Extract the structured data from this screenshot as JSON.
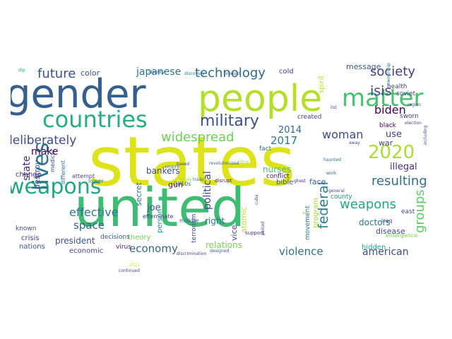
{
  "words": [
    {
      "text": "states",
      "color": "#dde318"
    },
    {
      "text": "united",
      "color": "#3fbc73"
    },
    {
      "text": "people",
      "color": "#b5de2b"
    },
    {
      "text": "gender",
      "color": "#355f8d"
    },
    {
      "text": "countries",
      "color": "#26ad81"
    },
    {
      "text": "matter",
      "color": "#48c16e"
    },
    {
      "text": "weapons",
      "color": "#22a785"
    },
    {
      "text": "lives",
      "color": "#2b758e"
    },
    {
      "text": "2020",
      "color": "#addc30"
    },
    {
      "text": "military",
      "color": "#3b528b"
    },
    {
      "text": "technology",
      "color": "#31688e"
    },
    {
      "text": "deliberately",
      "color": "#3e4989"
    },
    {
      "text": "future",
      "color": "#3b528b"
    },
    {
      "text": "japanese",
      "color": "#2c718e"
    },
    {
      "text": "society",
      "color": "#424086"
    },
    {
      "text": "isis",
      "color": "#424186"
    },
    {
      "text": "biden",
      "color": "#440154"
    },
    {
      "text": "woman",
      "color": "#3e4a89"
    },
    {
      "text": "widespread",
      "color": "#6ece58"
    },
    {
      "text": "effective",
      "color": "#2a788e"
    },
    {
      "text": "weapons",
      "color": "#22a785"
    },
    {
      "text": "federal",
      "color": "#287d8e"
    },
    {
      "text": "groups",
      "color": "#5ec962"
    },
    {
      "text": "resulting",
      "color": "#2d708e"
    },
    {
      "text": "space",
      "color": "#32658e"
    },
    {
      "text": "president",
      "color": "#3b528b"
    },
    {
      "text": "economy",
      "color": "#33638d"
    },
    {
      "text": "violence",
      "color": "#2c718e"
    },
    {
      "text": "american",
      "color": "#3e4a89"
    },
    {
      "text": "relations",
      "color": "#7ad151"
    },
    {
      "text": "political",
      "color": "#3e4989"
    },
    {
      "text": "joe",
      "color": "#38588c"
    },
    {
      "text": "2014",
      "color": "#31688e"
    },
    {
      "text": "2017",
      "color": "#2a788e"
    },
    {
      "text": "make",
      "color": "#440154"
    },
    {
      "text": "state",
      "color": "#482878"
    },
    {
      "text": "destroy",
      "color": "#3b528b"
    },
    {
      "text": "secret",
      "color": "#2c728e"
    },
    {
      "text": "right",
      "color": "#2a788e"
    },
    {
      "text": "illegal",
      "color": "#46327e"
    },
    {
      "text": "use",
      "color": "#433e85"
    },
    {
      "text": "war",
      "color": "#404688"
    },
    {
      "text": "doctors",
      "color": "#2a788e"
    },
    {
      "text": "disease",
      "color": "#3f4788"
    },
    {
      "text": "nurses",
      "color": "#4ac16d"
    },
    {
      "text": "face",
      "color": "#32658e"
    },
    {
      "text": "color",
      "color": "#375a8c"
    },
    {
      "text": "cold",
      "color": "#404688"
    },
    {
      "text": "message",
      "color": "#38588c"
    },
    {
      "text": "spirit",
      "color": "#b5de2b"
    },
    {
      "text": "fact",
      "color": "#2c728e"
    },
    {
      "text": "bankers",
      "color": "#3e4a89"
    },
    {
      "text": "gun",
      "color": "#481a6c"
    },
    {
      "text": "vice",
      "color": "#414487"
    },
    {
      "text": "atomic",
      "color": "#b8de29"
    },
    {
      "text": "program",
      "color": "#9fda3a"
    },
    {
      "text": "economic",
      "color": "#3e4a89"
    },
    {
      "text": "crisis",
      "color": "#424086"
    },
    {
      "text": "known",
      "color": "#3b528b"
    },
    {
      "text": "change",
      "color": "#46337f"
    },
    {
      "text": "nations",
      "color": "#3b528b"
    },
    {
      "text": "person",
      "color": "#21918c"
    },
    {
      "text": "theory",
      "color": "#73d056"
    },
    {
      "text": "virus",
      "color": "#481f70"
    },
    {
      "text": "middle",
      "color": "#39568c"
    },
    {
      "text": "bible",
      "color": "#38588c"
    },
    {
      "text": "hidden",
      "color": "#1f9e89"
    },
    {
      "text": "created",
      "color": "#3f4788"
    },
    {
      "text": "black",
      "color": "#440154"
    },
    {
      "text": "health",
      "color": "#3e4989"
    },
    {
      "text": "soviet",
      "color": "#3e4989"
    },
    {
      "text": "sworn",
      "color": "#414487"
    },
    {
      "text": "medical",
      "color": "#39568c"
    },
    {
      "text": "movement",
      "color": "#2a788e"
    },
    {
      "text": "terrorism",
      "color": "#3e4a89"
    },
    {
      "text": "different",
      "color": "#2c718e"
    },
    {
      "text": "conflict",
      "color": "#48186a"
    },
    {
      "text": "east",
      "color": "#3b528b"
    },
    {
      "text": "iraq",
      "color": "#404688"
    },
    {
      "text": "county",
      "color": "#23898e"
    },
    {
      "text": "2010s",
      "color": "#31688e"
    },
    {
      "text": "lower",
      "color": "#2a788e"
    },
    {
      "text": "decisions",
      "color": "#39568c"
    },
    {
      "text": "effeminate",
      "color": "#424086"
    },
    {
      "text": "attempt",
      "color": "#404688"
    },
    {
      "text": "disrupt",
      "color": "#482878"
    },
    {
      "text": "support",
      "color": "#46327e"
    },
    {
      "text": "based",
      "color": "#3f4788"
    },
    {
      "text": "revolutionized",
      "color": "#31688e"
    },
    {
      "text": "period",
      "color": "#46337f"
    },
    {
      "text": "designed",
      "color": "#39568c"
    },
    {
      "text": "discrimination",
      "color": "#404688"
    },
    {
      "text": "identity",
      "color": "#2d708e"
    },
    {
      "text": "discovery",
      "color": "#287d8e"
    },
    {
      "text": "product",
      "color": "#39568c"
    },
    {
      "text": "list",
      "color": "#3b528b"
    },
    {
      "text": "emergence",
      "color": "#7ad151"
    },
    {
      "text": "al",
      "color": "#a5db36"
    },
    {
      "text": "kinda",
      "color": "#a0da39"
    },
    {
      "text": "cuba",
      "color": "#39568c"
    },
    {
      "text": "ghost",
      "color": "#482475"
    },
    {
      "text": "general",
      "color": "#3e4989"
    },
    {
      "text": "work",
      "color": "#2d708e"
    },
    {
      "text": "away",
      "color": "#404688"
    },
    {
      "text": "election",
      "color": "#3e4989"
    },
    {
      "text": "region",
      "color": "#404688"
    },
    {
      "text": "haunted",
      "color": "#2c728e"
    },
    {
      "text": "including",
      "color": "#3b528b"
    },
    {
      "text": "ownership",
      "color": "#2c718e"
    },
    {
      "text": "dip",
      "color": "#22a785"
    },
    {
      "text": "2021",
      "color": "#d8e219"
    },
    {
      "text": "empire",
      "color": "#2c718e"
    },
    {
      "text": "trade",
      "color": "#287d8e"
    },
    {
      "text": "time",
      "color": "#a5db36"
    },
    {
      "text": "continued",
      "color": "#404688"
    },
    {
      "text": "rights",
      "color": "#39568c"
    }
  ]
}
